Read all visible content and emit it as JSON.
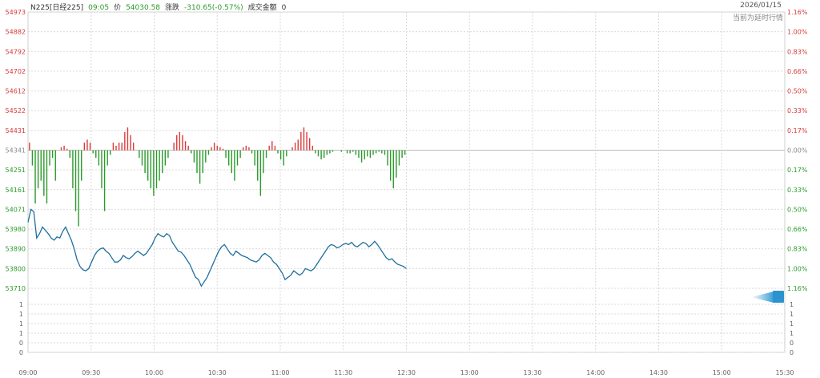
{
  "header": {
    "symbol": "N225[日经225]",
    "time": "09:05",
    "price_label": "价",
    "price": "54030.58",
    "change_label": "涨跌",
    "change": "-310.65(-0.57%)",
    "turnover_label": "成交金额",
    "turnover": "0",
    "date": "2026/01/15",
    "note": "当前为延时行情"
  },
  "colors": {
    "line": "#1f6f9f",
    "up": "#d93a3a",
    "down": "#2b9a2b",
    "grid": "#d9d9d9",
    "flat": "#888888"
  },
  "chart_data": {
    "type": "line",
    "title": "",
    "xlabel": "",
    "ylabel": "",
    "prev_close": 54341,
    "ylim": [
      53710,
      54973
    ],
    "x_ticks": [
      "09:00",
      "09:30",
      "10:00",
      "10:30",
      "11:00",
      "11:30",
      "12:30",
      "13:00",
      "13:30",
      "14:00",
      "14:30",
      "15:00",
      "15:30"
    ],
    "y_ticks_left": [
      "54973",
      "54882",
      "54792",
      "54702",
      "54612",
      "54522",
      "54431",
      "54341",
      "54251",
      "54161",
      "54071",
      "53980",
      "53890",
      "53800",
      "53710"
    ],
    "y_ticks_right": [
      "1.16%",
      "1.00%",
      "0.83%",
      "0.66%",
      "0.50%",
      "0.33%",
      "0.17%",
      "0.00%",
      "0.17%",
      "0.33%",
      "0.50%",
      "0.66%",
      "0.83%",
      "1.00%",
      "1.16%"
    ],
    "volume_ticks": [
      "1",
      "1",
      "1",
      "1",
      "0",
      "0"
    ],
    "volume_ticks_right": [
      "1",
      "1",
      "1",
      "1",
      "0",
      "0"
    ],
    "series": [
      {
        "values": [
          54012,
          54071,
          54060,
          53940,
          53960,
          53990,
          53975,
          53960,
          53940,
          53930,
          53945,
          53940,
          53970,
          53990,
          53960,
          53930,
          53890,
          53840,
          53810,
          53795,
          53790,
          53800,
          53830,
          53860,
          53880,
          53890,
          53895,
          53880,
          53870,
          53850,
          53830,
          53830,
          53840,
          53860,
          53850,
          53845,
          53855,
          53870,
          53880,
          53870,
          53860,
          53870,
          53890,
          53910,
          53940,
          53960,
          53950,
          53945,
          53960,
          53950,
          53920,
          53900,
          53880,
          53875,
          53860,
          53840,
          53820,
          53790,
          53760,
          53750,
          53720,
          53740,
          53760,
          53790,
          53820,
          53850,
          53880,
          53900,
          53910,
          53890,
          53870,
          53860,
          53880,
          53870,
          53860,
          53855,
          53850,
          53840,
          53835,
          53830,
          53840,
          53860,
          53870,
          53860,
          53850,
          53830,
          53820,
          53800,
          53780,
          53750,
          53760,
          53770,
          53790,
          53780,
          53770,
          53780,
          53800,
          53795,
          53790,
          53800,
          53820,
          53840,
          53860,
          53880,
          53900,
          53910,
          53905,
          53895,
          53900,
          53910,
          53915,
          53910,
          53920,
          53905,
          53900,
          53910,
          53920,
          53915,
          53900,
          53910,
          53925,
          53910,
          53890,
          53870,
          53850,
          53840,
          53845,
          53830,
          53820,
          53815,
          53810,
          53800
        ]
      }
    ],
    "bars": [
      5,
      -10,
      -35,
      -25,
      -20,
      -30,
      -35,
      -10,
      -5,
      -20,
      0,
      2,
      3,
      1,
      -5,
      -25,
      -40,
      -50,
      -20,
      5,
      7,
      5,
      -2,
      -5,
      -10,
      -25,
      -40,
      -10,
      -3,
      5,
      3,
      5,
      5,
      12,
      15,
      10,
      5,
      0,
      -5,
      -10,
      -15,
      -20,
      -25,
      -30,
      -25,
      -20,
      -15,
      -10,
      -5,
      0,
      5,
      10,
      12,
      10,
      6,
      3,
      -2,
      -8,
      -15,
      -22,
      -15,
      -8,
      -3,
      2,
      5,
      3,
      2,
      1,
      -5,
      -10,
      -15,
      -20,
      -10,
      -5,
      2,
      3,
      2,
      -2,
      -10,
      -20,
      -30,
      -15,
      -5,
      3,
      6,
      3,
      -2,
      -6,
      -10,
      -4,
      0,
      2,
      5,
      7,
      12,
      15,
      12,
      8,
      3,
      -2,
      -4,
      -6,
      -5,
      -3,
      -2,
      -1,
      0,
      0,
      -1,
      0,
      -2,
      -2,
      -1,
      -3,
      -5,
      -8,
      -6,
      -4,
      -5,
      -3,
      -2,
      -1,
      -2,
      -3,
      -10,
      -20,
      -25,
      -18,
      -10,
      -5,
      -3
    ]
  }
}
